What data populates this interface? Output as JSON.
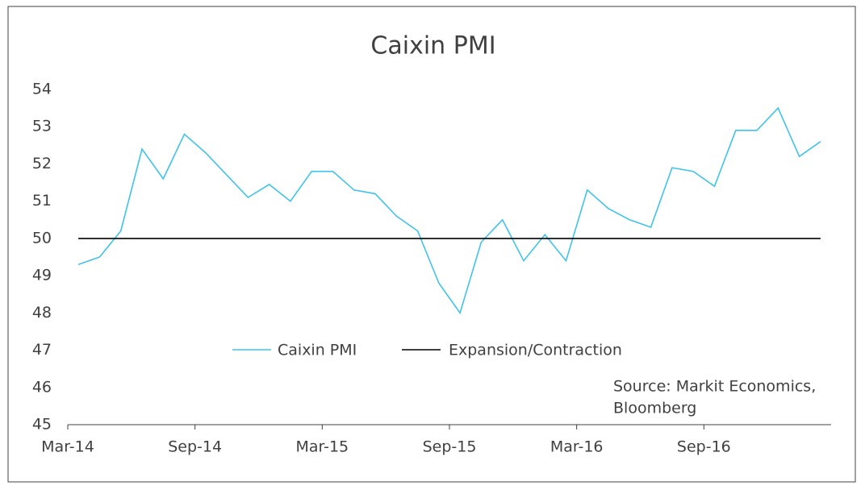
{
  "chart_data": {
    "type": "line",
    "title": "Caixin PMI",
    "categories": [
      "Mar-14",
      null,
      null,
      null,
      null,
      null,
      "Sep-14",
      null,
      null,
      null,
      null,
      null,
      "Mar-15",
      null,
      null,
      null,
      null,
      null,
      "Sep-15",
      null,
      null,
      null,
      null,
      null,
      "Mar-16",
      null,
      null,
      null,
      null,
      null,
      "Sep-16",
      null,
      null,
      null,
      null,
      null
    ],
    "series": [
      {
        "name": "Caixin PMI",
        "color": "#3ec3ec",
        "values": [
          49.3,
          49.5,
          50.2,
          52.4,
          51.6,
          52.8,
          52.3,
          51.7,
          51.1,
          51.45,
          51.0,
          51.8,
          51.8,
          51.3,
          51.2,
          50.6,
          50.2,
          48.8,
          48.0,
          49.9,
          50.5,
          49.4,
          50.1,
          49.4,
          51.3,
          50.8,
          50.5,
          50.3,
          51.9,
          51.8,
          51.4,
          52.9,
          52.9,
          53.5,
          52.2,
          52.6
        ]
      },
      {
        "name": "Expansion/Contraction",
        "color": "#000000",
        "values": [
          50,
          50,
          50,
          50,
          50,
          50,
          50,
          50,
          50,
          50,
          50,
          50,
          50,
          50,
          50,
          50,
          50,
          50,
          50,
          50,
          50,
          50,
          50,
          50,
          50,
          50,
          50,
          50,
          50,
          50,
          50,
          50,
          50,
          50,
          50,
          50
        ]
      }
    ],
    "ylim": [
      45,
      54
    ],
    "yticks": [
      45,
      46,
      47,
      48,
      49,
      50,
      51,
      52,
      53,
      54
    ],
    "grid": false,
    "source": [
      "Source: Markit Economics,",
      "Bloomberg"
    ]
  }
}
